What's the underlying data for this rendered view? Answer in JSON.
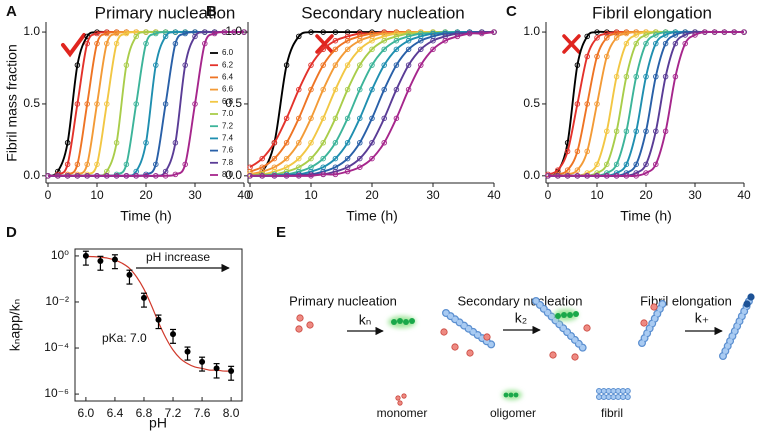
{
  "chart_data": [
    {
      "type": "line",
      "panel": "A",
      "title": "Primary nucleation",
      "x_label": "Time (h)",
      "y_label": "Fibril mass fraction",
      "x": [
        0,
        2,
        4,
        6,
        8,
        10,
        12,
        14,
        16,
        18,
        20,
        22,
        24,
        26,
        28,
        30,
        32,
        34,
        36,
        38,
        40
      ],
      "xlim": [
        0,
        40
      ],
      "ylim": [
        -0.05,
        1.07
      ],
      "xticks": [
        0,
        10,
        20,
        30,
        40
      ],
      "yticks": [
        {
          "value": 0,
          "label": "0.0"
        },
        {
          "value": 0.5,
          "label": "0.5"
        },
        {
          "value": 1,
          "label": "1.0"
        }
      ],
      "legend": "right",
      "series": [
        {
          "name": "6.0",
          "color": "#000000",
          "values": [
            0,
            0.03,
            0.23,
            0.77,
            0.97,
            1,
            1,
            1,
            1,
            1,
            1,
            1,
            1,
            1,
            1,
            1,
            1,
            1,
            1,
            1,
            1
          ]
        },
        {
          "name": "6.2",
          "color": "#e3322b",
          "values": [
            0,
            0.01,
            0.08,
            0.5,
            0.92,
            0.99,
            1,
            1,
            1,
            1,
            1,
            1,
            1,
            1,
            1,
            1,
            1,
            1,
            1,
            1,
            1
          ]
        },
        {
          "name": "6.4",
          "color": "#ee7424",
          "values": [
            0,
            0,
            0.01,
            0.08,
            0.5,
            0.92,
            0.99,
            1,
            1,
            1,
            1,
            1,
            1,
            1,
            1,
            1,
            1,
            1,
            1,
            1,
            1
          ]
        },
        {
          "name": "6.6",
          "color": "#f39b37",
          "values": [
            0,
            0,
            0,
            0.01,
            0.08,
            0.5,
            0.92,
            0.99,
            1,
            1,
            1,
            1,
            1,
            1,
            1,
            1,
            1,
            1,
            1,
            1,
            1
          ]
        },
        {
          "name": "6.8",
          "color": "#f2c744",
          "values": [
            0,
            0,
            0,
            0,
            0.01,
            0.08,
            0.5,
            0.92,
            0.99,
            1,
            1,
            1,
            1,
            1,
            1,
            1,
            1,
            1,
            1,
            1,
            1
          ]
        },
        {
          "name": "7.0",
          "color": "#a9cd4a",
          "values": [
            0,
            0,
            0,
            0,
            0,
            0,
            0.03,
            0.23,
            0.77,
            0.97,
            1,
            1,
            1,
            1,
            1,
            1,
            1,
            1,
            1,
            1,
            1
          ]
        },
        {
          "name": "7.2",
          "color": "#3cb49a",
          "values": [
            0,
            0,
            0,
            0,
            0,
            0,
            0,
            0.01,
            0.08,
            0.5,
            0.92,
            0.99,
            1,
            1,
            1,
            1,
            1,
            1,
            1,
            1,
            1
          ]
        },
        {
          "name": "7.4",
          "color": "#1f8fb0",
          "values": [
            0,
            0,
            0,
            0,
            0,
            0,
            0,
            0,
            0,
            0.03,
            0.23,
            0.77,
            0.97,
            1,
            1,
            1,
            1,
            1,
            1,
            1,
            1
          ]
        },
        {
          "name": "7.6",
          "color": "#2960a8",
          "values": [
            0,
            0,
            0,
            0,
            0,
            0,
            0,
            0,
            0,
            0,
            0.01,
            0.08,
            0.5,
            0.92,
            0.99,
            1,
            1,
            1,
            1,
            1,
            1
          ]
        },
        {
          "name": "7.8",
          "color": "#5a3c96",
          "values": [
            0,
            0,
            0,
            0,
            0,
            0,
            0,
            0,
            0,
            0,
            0,
            0,
            0.03,
            0.23,
            0.77,
            0.97,
            1,
            1,
            1,
            1,
            1
          ]
        },
        {
          "name": "8.0",
          "color": "#a6268c",
          "values": [
            0,
            0,
            0,
            0,
            0,
            0,
            0,
            0,
            0,
            0,
            0,
            0,
            0,
            0.01,
            0.08,
            0.5,
            0.92,
            0.99,
            1,
            1,
            1
          ]
        }
      ]
    },
    {
      "type": "line",
      "panel": "B",
      "title": "Secondary nucleation",
      "x_label": "Time (h)",
      "x": [
        0,
        2,
        4,
        6,
        8,
        10,
        12,
        14,
        16,
        18,
        20,
        22,
        24,
        26,
        28,
        30,
        32,
        34,
        36,
        38,
        40
      ],
      "xlim": [
        0,
        40
      ],
      "ylim": [
        -0.05,
        1.07
      ],
      "xticks": [
        0,
        10,
        20,
        30,
        40
      ],
      "yticks": [
        {
          "value": 0,
          "label": "0.0"
        },
        {
          "value": 0.5,
          "label": "0.5"
        },
        {
          "value": 1,
          "label": "1.0"
        }
      ],
      "series": [
        {
          "color": "#000000",
          "values": [
            0,
            0.03,
            0.23,
            0.77,
            0.97,
            1,
            1,
            1,
            1,
            1,
            1,
            1,
            1,
            1,
            1,
            1,
            1,
            1,
            1,
            1,
            1
          ]
        },
        {
          "color": "#e3322b",
          "values": [
            0.06,
            0.12,
            0.23,
            0.4,
            0.6,
            0.77,
            0.88,
            0.94,
            0.97,
            0.99,
            0.99,
            1,
            1,
            1,
            1,
            1,
            1,
            1,
            1,
            1,
            1
          ]
        },
        {
          "color": "#ee7424",
          "values": [
            0.03,
            0.06,
            0.12,
            0.23,
            0.4,
            0.6,
            0.77,
            0.88,
            0.94,
            0.97,
            0.99,
            0.99,
            1,
            1,
            1,
            1,
            1,
            1,
            1,
            1,
            1
          ]
        },
        {
          "color": "#f39b37",
          "values": [
            0.01,
            0.03,
            0.06,
            0.12,
            0.23,
            0.4,
            0.6,
            0.77,
            0.88,
            0.94,
            0.97,
            0.99,
            0.99,
            1,
            1,
            1,
            1,
            1,
            1,
            1,
            1
          ]
        },
        {
          "color": "#f2c744",
          "values": [
            0.01,
            0.01,
            0.03,
            0.06,
            0.12,
            0.23,
            0.4,
            0.6,
            0.77,
            0.88,
            0.94,
            0.97,
            0.99,
            0.99,
            1,
            1,
            1,
            1,
            1,
            1,
            1
          ]
        },
        {
          "color": "#a9cd4a",
          "values": [
            0,
            0.01,
            0.01,
            0.03,
            0.06,
            0.12,
            0.23,
            0.4,
            0.6,
            0.77,
            0.88,
            0.94,
            0.97,
            0.99,
            0.99,
            1,
            1,
            1,
            1,
            1,
            1
          ]
        },
        {
          "color": "#3cb49a",
          "values": [
            0,
            0,
            0.01,
            0.01,
            0.03,
            0.06,
            0.12,
            0.23,
            0.4,
            0.6,
            0.77,
            0.88,
            0.94,
            0.97,
            0.99,
            0.99,
            1,
            1,
            1,
            1,
            1
          ]
        },
        {
          "color": "#1f8fb0",
          "values": [
            0,
            0,
            0,
            0.01,
            0.01,
            0.03,
            0.06,
            0.12,
            0.23,
            0.4,
            0.6,
            0.77,
            0.88,
            0.94,
            0.97,
            0.99,
            0.99,
            1,
            1,
            1,
            1
          ]
        },
        {
          "color": "#2960a8",
          "values": [
            0,
            0,
            0,
            0,
            0.01,
            0.01,
            0.03,
            0.06,
            0.12,
            0.23,
            0.4,
            0.6,
            0.77,
            0.88,
            0.94,
            0.97,
            0.99,
            0.99,
            1,
            1,
            1
          ]
        },
        {
          "color": "#5a3c96",
          "values": [
            0,
            0,
            0,
            0,
            0,
            0.01,
            0.01,
            0.03,
            0.06,
            0.12,
            0.23,
            0.4,
            0.6,
            0.77,
            0.88,
            0.94,
            0.97,
            0.99,
            0.99,
            1,
            1
          ]
        },
        {
          "color": "#a6268c",
          "values": [
            0,
            0,
            0,
            0,
            0,
            0,
            0.01,
            0.01,
            0.03,
            0.06,
            0.12,
            0.23,
            0.4,
            0.6,
            0.77,
            0.88,
            0.94,
            0.97,
            0.99,
            0.99,
            1
          ]
        }
      ]
    },
    {
      "type": "line",
      "panel": "C",
      "title": "Fibril elongation",
      "x_label": "Time (h)",
      "x": [
        0,
        2,
        4,
        6,
        8,
        10,
        12,
        14,
        16,
        18,
        20,
        22,
        24,
        26,
        28,
        30,
        32,
        34,
        36,
        38,
        40
      ],
      "xlim": [
        0,
        40
      ],
      "ylim": [
        -0.05,
        1.07
      ],
      "xticks": [
        0,
        10,
        20,
        30,
        40
      ],
      "yticks": [
        {
          "value": 0,
          "label": "0.0"
        },
        {
          "value": 0.5,
          "label": "0.5"
        },
        {
          "value": 1,
          "label": "1.0"
        }
      ],
      "series": [
        {
          "color": "#000000",
          "values": [
            0,
            0.03,
            0.23,
            0.77,
            0.97,
            1,
            1,
            1,
            1,
            1,
            1,
            1,
            1,
            1,
            1,
            1,
            1,
            1,
            1,
            1,
            1
          ]
        },
        {
          "color": "#e3322b",
          "values": [
            0.01,
            0.04,
            0.17,
            0.5,
            0.83,
            0.96,
            0.99,
            1,
            1,
            1,
            1,
            1,
            1,
            1,
            1,
            1,
            1,
            1,
            1,
            1,
            1
          ]
        },
        {
          "color": "#ee7424",
          "values": [
            0,
            0.01,
            0.04,
            0.17,
            0.5,
            0.83,
            0.96,
            0.99,
            1,
            1,
            1,
            1,
            1,
            1,
            1,
            1,
            1,
            1,
            1,
            1,
            1
          ]
        },
        {
          "color": "#f39b37",
          "values": [
            0,
            0,
            0.01,
            0.04,
            0.17,
            0.5,
            0.83,
            0.96,
            0.99,
            1,
            1,
            1,
            1,
            1,
            1,
            1,
            1,
            1,
            1,
            1,
            1
          ]
        },
        {
          "color": "#f2c744",
          "values": [
            0,
            0,
            0,
            0,
            0.02,
            0.08,
            0.31,
            0.69,
            0.92,
            0.98,
            1,
            1,
            1,
            1,
            1,
            1,
            1,
            1,
            1,
            1,
            1
          ]
        },
        {
          "color": "#a9cd4a",
          "values": [
            0,
            0,
            0,
            0,
            0,
            0.02,
            0.08,
            0.31,
            0.69,
            0.92,
            0.98,
            1,
            1,
            1,
            1,
            1,
            1,
            1,
            1,
            1,
            1
          ]
        },
        {
          "color": "#3cb49a",
          "values": [
            0,
            0,
            0,
            0,
            0,
            0,
            0.02,
            0.08,
            0.31,
            0.69,
            0.92,
            0.98,
            1,
            1,
            1,
            1,
            1,
            1,
            1,
            1,
            1
          ]
        },
        {
          "color": "#1f8fb0",
          "values": [
            0,
            0,
            0,
            0,
            0,
            0,
            0,
            0.02,
            0.08,
            0.31,
            0.69,
            0.92,
            0.98,
            1,
            1,
            1,
            1,
            1,
            1,
            1,
            1
          ]
        },
        {
          "color": "#2960a8",
          "values": [
            0,
            0,
            0,
            0,
            0,
            0,
            0,
            0,
            0.02,
            0.08,
            0.31,
            0.69,
            0.92,
            0.98,
            1,
            1,
            1,
            1,
            1,
            1,
            1
          ]
        },
        {
          "color": "#5a3c96",
          "values": [
            0,
            0,
            0,
            0,
            0,
            0,
            0,
            0,
            0,
            0.02,
            0.08,
            0.31,
            0.69,
            0.92,
            0.98,
            1,
            1,
            1,
            1,
            1,
            1
          ]
        },
        {
          "color": "#a6268c",
          "values": [
            0,
            0,
            0,
            0,
            0,
            0,
            0,
            0,
            0,
            0,
            0.02,
            0.08,
            0.31,
            0.69,
            0.92,
            0.98,
            1,
            1,
            1,
            1,
            1
          ]
        }
      ]
    },
    {
      "type": "scatter",
      "panel": "D",
      "x_label": "pH",
      "y_label": "kₙapp/kₙ",
      "log_y": true,
      "x": [
        6,
        6.2,
        6.4,
        6.6,
        6.8,
        7,
        7.2,
        7.4,
        7.6,
        7.8,
        8
      ],
      "values": [
        1,
        0.6,
        0.7,
        0.15,
        0.015,
        0.0017,
        0.0004,
        7e-05,
        2.5e-05,
        1.3e-05,
        1e-05
      ],
      "errors": [
        0.6,
        0.36,
        0.42,
        0.09,
        0.009,
        0.001,
        0.00024,
        4e-05,
        1.5e-05,
        8e-06,
        6e-06
      ],
      "color": "#000000",
      "fit": {
        "color": "#d0392b",
        "x": [
          6,
          6.1,
          6.2,
          6.3,
          6.4,
          6.5,
          6.6,
          6.7,
          6.8,
          6.9,
          7,
          7.1,
          7.2,
          7.3,
          7.4,
          7.5,
          7.6,
          7.7,
          7.8,
          7.9,
          8
        ],
        "values": [
          0.96,
          0.93,
          0.88,
          0.8,
          0.66,
          0.48,
          0.29,
          0.12,
          0.036,
          0.0074,
          0.0013,
          0.00028,
          8.2e-05,
          3.5e-05,
          2.1e-05,
          1.5e-05,
          1.3e-05,
          1.1e-05,
          1.1e-05,
          1e-05,
          1e-05
        ]
      },
      "xlim": [
        5.85,
        8.15
      ],
      "ylim": [
        5e-07,
        2
      ],
      "xticks": [
        {
          "value": 6,
          "label": "6.0"
        },
        6.4,
        6.8,
        7.2,
        7.6,
        {
          "value": 8,
          "label": "8.0"
        }
      ],
      "yticks": [
        {
          "value": 1,
          "label": "10⁰"
        },
        {
          "value": 0.01,
          "label": "10⁻²"
        },
        {
          "value": 0.0001,
          "label": "10⁻⁴"
        },
        {
          "value": 1e-06,
          "label": "10⁻⁶"
        }
      ],
      "annotations": [
        "pH increase",
        "pKa: 7.0"
      ]
    }
  ],
  "schematic": {
    "panel": "E",
    "steps": [
      {
        "title": "Primary nucleation",
        "rate": "kₙ"
      },
      {
        "title": "Secondary nucleation",
        "rate": "k₂"
      },
      {
        "title": "Fibril elongation",
        "rate": "k₊"
      }
    ],
    "legend": [
      "monomer",
      "oligomer",
      "fibril"
    ]
  }
}
